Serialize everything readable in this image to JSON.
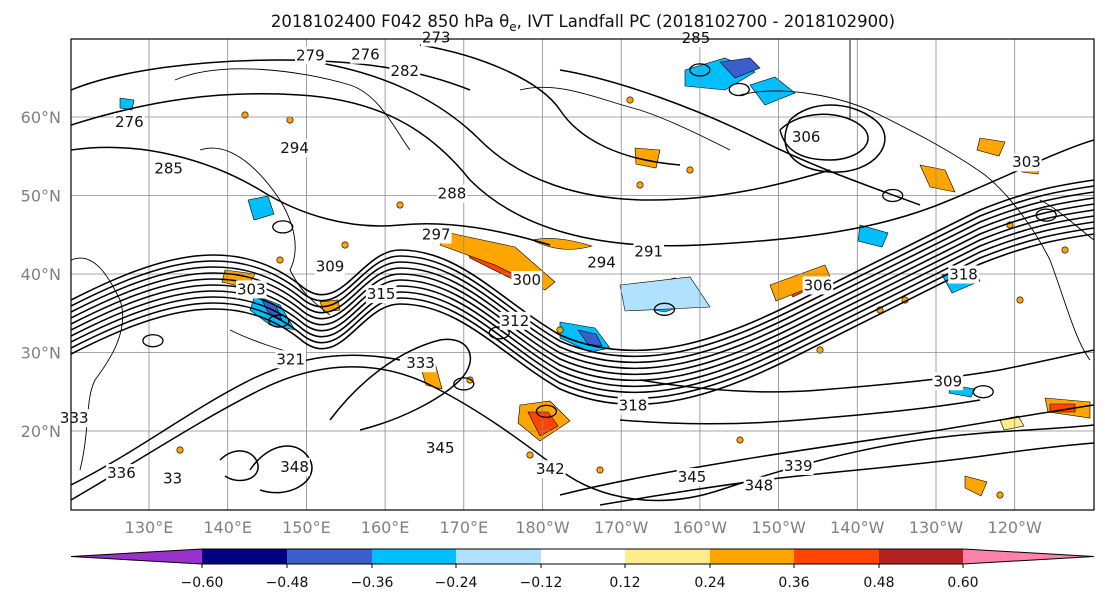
{
  "chart_data": {
    "type": "contour-map",
    "title": "2018102400 F042 850 hPa θ",
    "title_sub": "e",
    "title_rest": ", IVT Landfall PC (2018102700 - 2018102900)",
    "lat_ticks": [
      "60°N",
      "50°N",
      "40°N",
      "30°N",
      "20°N"
    ],
    "lon_ticks": [
      "130°E",
      "140°E",
      "150°E",
      "160°E",
      "170°E",
      "180°W",
      "170°W",
      "160°W",
      "150°W",
      "140°W",
      "130°W",
      "120°W"
    ],
    "colorbar": {
      "ticks": [
        "−0.60",
        "−0.48",
        "−0.36",
        "−0.24",
        "−0.12",
        "0.12",
        "0.24",
        "0.36",
        "0.48",
        "0.60"
      ],
      "boundaries": [
        -0.6,
        -0.48,
        -0.36,
        -0.24,
        -0.12,
        0.12,
        0.24,
        0.36,
        0.48,
        0.6
      ],
      "colors": [
        "#9932cc",
        "#000080",
        "#3a5fcd",
        "#00bfff",
        "#b0e2ff",
        "#ffffff",
        "#ffec8b",
        "#ffa500",
        "#ff4500",
        "#b22222",
        "#ff82ab"
      ],
      "extend": "both"
    },
    "contour_labels": [
      {
        "text": "273",
        "lon": 166.5,
        "lat": 69.5
      },
      {
        "text": "279",
        "lon": 150.5,
        "lat": 67.2
      },
      {
        "text": "276",
        "lon": 157.5,
        "lat": 67.3
      },
      {
        "text": "282",
        "lon": 162.5,
        "lat": 65.2
      },
      {
        "text": "276",
        "lon": 127.5,
        "lat": 58.7
      },
      {
        "text": "294",
        "lon": 148.5,
        "lat": 55.4
      },
      {
        "text": "285",
        "lon": 132.5,
        "lat": 52.8
      },
      {
        "text": "288",
        "lon": 168.5,
        "lat": 49.6
      },
      {
        "text": "297",
        "lon": 166.5,
        "lat": 44.4
      },
      {
        "text": "294",
        "lon": 187.5,
        "lat": 40.8
      },
      {
        "text": "291",
        "lon": 193.5,
        "lat": 42.2
      },
      {
        "text": "300",
        "lon": 178.0,
        "lat": 38.6
      },
      {
        "text": "309",
        "lon": 153.0,
        "lat": 40.3
      },
      {
        "text": "315",
        "lon": 159.5,
        "lat": 36.8
      },
      {
        "text": "303",
        "lon": 143.0,
        "lat": 37.4
      },
      {
        "text": "312",
        "lon": 176.5,
        "lat": 33.4
      },
      {
        "text": "321",
        "lon": 148.0,
        "lat": 28.5
      },
      {
        "text": "333",
        "lon": 164.5,
        "lat": 28.0
      },
      {
        "text": "318",
        "lon": 191.5,
        "lat": 22.6
      },
      {
        "text": "285",
        "lon": 199.5,
        "lat": 69.4
      },
      {
        "text": "306",
        "lon": 213.5,
        "lat": 56.8
      },
      {
        "text": "303",
        "lon": 241.5,
        "lat": 53.6
      },
      {
        "text": "318",
        "lon": 233.5,
        "lat": 39.3
      },
      {
        "text": "306",
        "lon": 215.0,
        "lat": 37.9
      },
      {
        "text": "309",
        "lon": 231.5,
        "lat": 25.7
      },
      {
        "text": "345",
        "lon": 167.0,
        "lat": 17.2
      },
      {
        "text": "342",
        "lon": 181.0,
        "lat": 14.5
      },
      {
        "text": "345",
        "lon": 199.0,
        "lat": 13.5
      },
      {
        "text": "339",
        "lon": 212.5,
        "lat": 14.9
      },
      {
        "text": "348",
        "lon": 207.5,
        "lat": 12.4
      },
      {
        "text": "348",
        "lon": 148.5,
        "lat": 14.8
      },
      {
        "text": "336",
        "lon": 126.5,
        "lat": 14.0
      },
      {
        "text": "33",
        "lon": 133.0,
        "lat": 13.3
      },
      {
        "text": "333",
        "lon": 120.5,
        "lat": 21.0
      }
    ],
    "features": [
      {
        "lon": 130.5,
        "lat": 31.5
      },
      {
        "lon": 146.5,
        "lat": 34.0
      },
      {
        "lon": 147.0,
        "lat": 46.0
      },
      {
        "lon": 174.5,
        "lat": 32.5
      },
      {
        "lon": 195.5,
        "lat": 35.5
      },
      {
        "lon": 200.0,
        "lat": 66.0
      },
      {
        "lon": 205.0,
        "lat": 63.5
      },
      {
        "lon": 224.5,
        "lat": 50.0
      },
      {
        "lon": 244.0,
        "lat": 47.5
      },
      {
        "lon": 170.0,
        "lat": 26.0
      },
      {
        "lon": 180.5,
        "lat": 22.5
      },
      {
        "lon": 236.0,
        "lat": 25.0
      }
    ]
  }
}
